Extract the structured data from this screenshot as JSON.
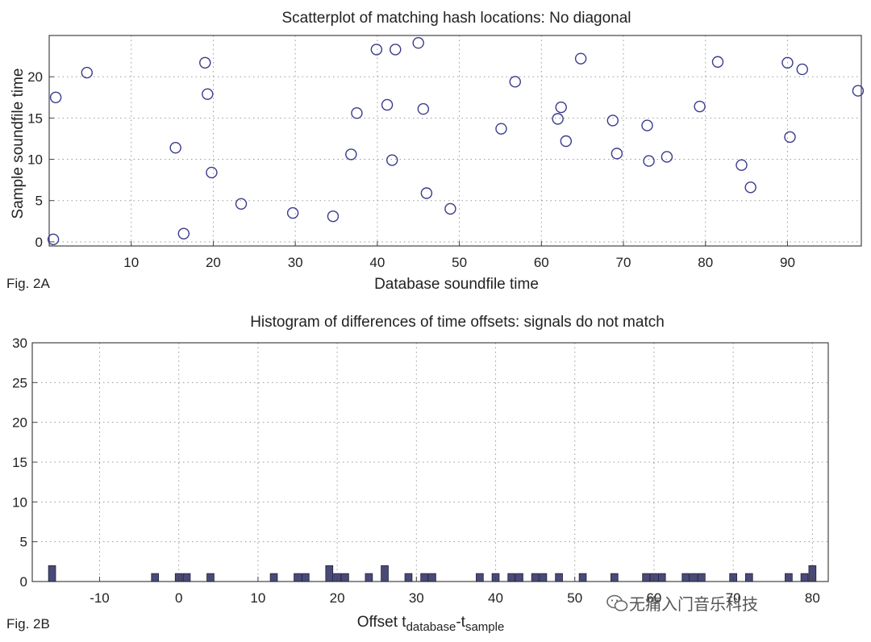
{
  "chart_data": [
    {
      "type": "scatter",
      "label": "Fig. 2A",
      "title": "Scatterplot of matching hash locations:  No diagonal",
      "xlabel": "Database soundfile time",
      "ylabel": "Sample soundfile time",
      "xlim": [
        0,
        99
      ],
      "ylim": [
        -0.5,
        25
      ],
      "xticks": [
        10,
        20,
        30,
        40,
        50,
        60,
        70,
        80,
        90
      ],
      "yticks": [
        0,
        5,
        10,
        15,
        20
      ],
      "grid": true,
      "marker": "circle",
      "marker_color": "#3a3a8c",
      "points": [
        {
          "x": 0.5,
          "y": 0.3
        },
        {
          "x": 0.8,
          "y": 17.5
        },
        {
          "x": 4.6,
          "y": 20.5
        },
        {
          "x": 15.4,
          "y": 11.4
        },
        {
          "x": 16.4,
          "y": 1.0
        },
        {
          "x": 19.0,
          "y": 21.7
        },
        {
          "x": 19.3,
          "y": 17.9
        },
        {
          "x": 19.8,
          "y": 8.4
        },
        {
          "x": 23.4,
          "y": 4.6
        },
        {
          "x": 29.7,
          "y": 3.5
        },
        {
          "x": 34.6,
          "y": 3.1
        },
        {
          "x": 36.8,
          "y": 10.6
        },
        {
          "x": 37.5,
          "y": 15.6
        },
        {
          "x": 39.9,
          "y": 23.3
        },
        {
          "x": 41.2,
          "y": 16.6
        },
        {
          "x": 41.8,
          "y": 9.9
        },
        {
          "x": 42.2,
          "y": 23.3
        },
        {
          "x": 45.0,
          "y": 24.1
        },
        {
          "x": 45.6,
          "y": 16.1
        },
        {
          "x": 46.0,
          "y": 5.9
        },
        {
          "x": 48.9,
          "y": 4.0
        },
        {
          "x": 55.1,
          "y": 13.7
        },
        {
          "x": 56.8,
          "y": 19.4
        },
        {
          "x": 62.0,
          "y": 14.9
        },
        {
          "x": 62.4,
          "y": 16.3
        },
        {
          "x": 63.0,
          "y": 12.2
        },
        {
          "x": 64.8,
          "y": 22.2
        },
        {
          "x": 68.7,
          "y": 14.7
        },
        {
          "x": 69.2,
          "y": 10.7
        },
        {
          "x": 72.9,
          "y": 14.1
        },
        {
          "x": 73.1,
          "y": 9.8
        },
        {
          "x": 75.3,
          "y": 10.3
        },
        {
          "x": 79.3,
          "y": 16.4
        },
        {
          "x": 81.5,
          "y": 21.8
        },
        {
          "x": 84.4,
          "y": 9.3
        },
        {
          "x": 85.5,
          "y": 6.6
        },
        {
          "x": 90.0,
          "y": 21.7
        },
        {
          "x": 90.3,
          "y": 12.7
        },
        {
          "x": 91.8,
          "y": 20.9
        },
        {
          "x": 98.6,
          "y": 18.3
        }
      ]
    },
    {
      "type": "bar",
      "label": "Fig. 2B",
      "title": "Histogram of differences of time offsets: signals do not match",
      "xlabel_main": "Offset t",
      "xlabel_sub1": "database",
      "xlabel_mid": "-t",
      "xlabel_sub2": "sample",
      "ylabel": "",
      "xlim": [
        -18.5,
        82
      ],
      "ylim": [
        0,
        30
      ],
      "xticks": [
        -10,
        0,
        10,
        20,
        30,
        40,
        50,
        60,
        70,
        80
      ],
      "xtick_labels": [
        "-10",
        "0",
        "10",
        "20",
        "30",
        "40",
        "50",
        "60",
        "70",
        "80"
      ],
      "yticks": [
        0,
        5,
        10,
        15,
        20,
        25,
        30
      ],
      "grid": true,
      "bar_color": "#4a4a78",
      "bar_width": 0.9,
      "x": [
        -16,
        -3,
        0,
        1,
        4,
        12,
        15,
        16,
        19,
        20,
        21,
        24,
        26,
        29,
        31,
        32,
        38,
        40,
        42,
        43,
        45,
        46,
        48,
        51,
        55,
        59,
        60,
        61,
        64,
        65,
        66,
        70,
        72,
        77,
        79,
        80
      ],
      "values": [
        2,
        1,
        1,
        1,
        1,
        1,
        1,
        1,
        2,
        1,
        1,
        1,
        2,
        1,
        1,
        1,
        1,
        1,
        1,
        1,
        1,
        1,
        1,
        1,
        1,
        1,
        1,
        1,
        1,
        1,
        1,
        1,
        1,
        1,
        1,
        2
      ]
    }
  ],
  "watermark": "无痛入门音乐科技"
}
